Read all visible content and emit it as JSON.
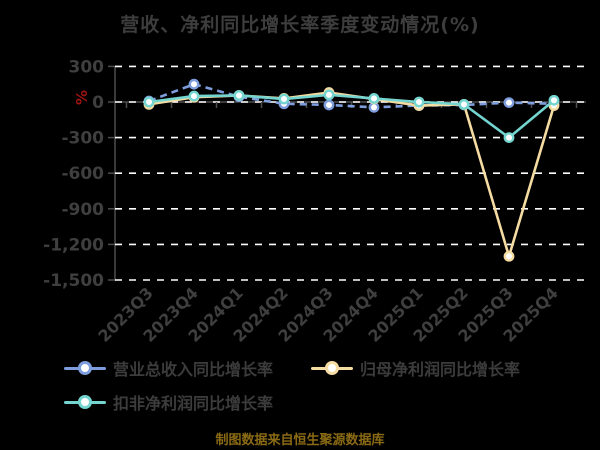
{
  "title": "营收、净利同比增长率季度变动情况(%)",
  "footer": "制图数据来自恒生聚源数据库",
  "colors": {
    "background": "#000000",
    "title_text": "#3d3d3d",
    "axis_label_text": "#3f3f3f",
    "grid_line": "#ffffff",
    "axis_line": "#4d4d4d",
    "unit_label": "#a01414",
    "footer_text": "#8a6a14",
    "marker_fill": "#ffffff"
  },
  "y_axis": {
    "unit": "%",
    "tick_labels": [
      "300",
      "0",
      "-300",
      "-600",
      "-900",
      "-1,200",
      "-1,500"
    ],
    "tick_values": [
      300,
      0,
      -300,
      -600,
      -900,
      -1200,
      -1500
    ]
  },
  "chart_data": {
    "type": "line",
    "title": "营收、净利同比增长率季度变动情况(%)",
    "xlabel": "",
    "ylabel": "%",
    "ylim": [
      -1500,
      300
    ],
    "grid": true,
    "legend_position": "bottom",
    "categories": [
      "2023Q3",
      "2023Q4",
      "2024Q1",
      "2024Q2",
      "2024Q3",
      "2024Q4",
      "2025Q1",
      "2025Q2",
      "2025Q3",
      "2025Q4"
    ],
    "series": [
      {
        "name": "营业总收入同比增长率",
        "color": "#7e9ddc",
        "dashed": true,
        "values": [
          8,
          150,
          45,
          -15,
          -25,
          -45,
          -30,
          -25,
          -5,
          -15
        ]
      },
      {
        "name": "归母净利润同比增长率",
        "color": "#f5dca2",
        "dashed": false,
        "values": [
          -20,
          40,
          55,
          30,
          80,
          25,
          -30,
          -20,
          -1300,
          -30
        ]
      },
      {
        "name": "扣非净利润同比增长率",
        "color": "#74d4cf",
        "dashed": false,
        "values": [
          0,
          50,
          55,
          25,
          60,
          30,
          0,
          -20,
          -300,
          15
        ]
      }
    ]
  }
}
